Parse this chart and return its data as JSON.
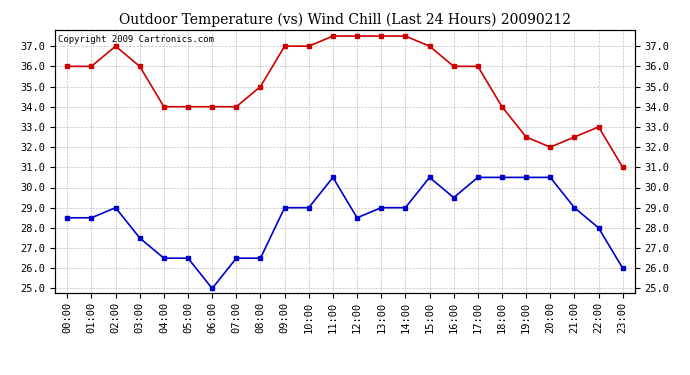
{
  "title": "Outdoor Temperature (vs) Wind Chill (Last 24 Hours) 20090212",
  "copyright_text": "Copyright 2009 Cartronics.com",
  "x_labels": [
    "00:00",
    "01:00",
    "02:00",
    "03:00",
    "04:00",
    "05:00",
    "06:00",
    "07:00",
    "08:00",
    "09:00",
    "10:00",
    "11:00",
    "12:00",
    "13:00",
    "14:00",
    "15:00",
    "16:00",
    "17:00",
    "18:00",
    "19:00",
    "20:00",
    "21:00",
    "22:00",
    "23:00"
  ],
  "red_data": [
    36.0,
    36.0,
    37.0,
    36.0,
    34.0,
    34.0,
    34.0,
    34.0,
    35.0,
    37.0,
    37.0,
    37.5,
    37.5,
    37.5,
    37.5,
    37.0,
    36.0,
    36.0,
    34.0,
    32.5,
    32.0,
    32.5,
    33.0,
    31.0
  ],
  "blue_data": [
    28.5,
    28.5,
    29.0,
    27.5,
    26.5,
    26.5,
    25.0,
    26.5,
    26.5,
    29.0,
    29.0,
    30.5,
    28.5,
    29.0,
    29.0,
    30.5,
    29.5,
    30.5,
    30.5,
    30.5,
    30.5,
    29.0,
    28.0,
    26.0
  ],
  "ylim_min": 24.8,
  "ylim_max": 37.8,
  "yticks": [
    25.0,
    26.0,
    27.0,
    28.0,
    29.0,
    30.0,
    31.0,
    32.0,
    33.0,
    34.0,
    35.0,
    36.0,
    37.0
  ],
  "red_color": "#cc0000",
  "blue_color": "#0000cc",
  "background_color": "#ffffff",
  "grid_color": "#bbbbbb",
  "title_fontsize": 10,
  "copyright_fontsize": 6.5,
  "tick_fontsize": 7.5
}
